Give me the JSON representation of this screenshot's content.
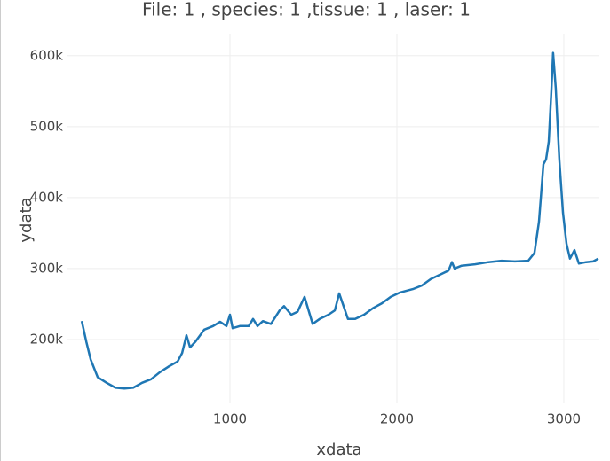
{
  "chart_data": {
    "type": "line",
    "title": "File: 1 , species: 1 ,tissue: 1 , laser: 1",
    "x_label": "xdata",
    "y_label": "ydata",
    "series": [
      {
        "name": "ydata",
        "color": "#1f77b4",
        "x": [
          112,
          139,
          165,
          207,
          261,
          314,
          367,
          420,
          473,
          527,
          580,
          633,
          686,
          713,
          739,
          761,
          793,
          846,
          899,
          941,
          979,
          1000,
          1016,
          1059,
          1112,
          1138,
          1165,
          1197,
          1245,
          1298,
          1324,
          1367,
          1404,
          1447,
          1495,
          1537,
          1590,
          1628,
          1654,
          1707,
          1750,
          1803,
          1856,
          1910,
          1963,
          2016,
          2096,
          2149,
          2202,
          2255,
          2309,
          2330,
          2346,
          2388,
          2468,
          2548,
          2628,
          2707,
          2787,
          2824,
          2851,
          2878,
          2894,
          2910,
          2926,
          2936,
          2952,
          2973,
          2995,
          3016,
          3037,
          3064,
          3090,
          3133,
          3176,
          3207
        ],
        "values": [
          226000,
          197000,
          172000,
          147000,
          139000,
          132000,
          131000,
          132000,
          139000,
          144000,
          154000,
          162000,
          169000,
          181000,
          206000,
          189000,
          197000,
          214000,
          219000,
          225000,
          219000,
          235000,
          216000,
          219000,
          219000,
          229000,
          219000,
          226000,
          222000,
          241000,
          247000,
          235000,
          239000,
          260000,
          222000,
          229000,
          235000,
          241000,
          265000,
          229000,
          229000,
          235000,
          244000,
          251000,
          260000,
          266000,
          271000,
          276000,
          285000,
          291000,
          297000,
          309000,
          300000,
          304000,
          306000,
          309000,
          311000,
          310000,
          311000,
          322000,
          366000,
          447000,
          454000,
          479000,
          554000,
          604000,
          554000,
          454000,
          379000,
          335000,
          314000,
          326000,
          307000,
          309000,
          310000,
          314000
        ]
      }
    ],
    "xlim": [
      21,
      3213
    ],
    "xticks": [
      1000,
      2000,
      3000
    ],
    "ylim": [
      110000,
      631000
    ],
    "yticks": [
      {
        "value": 200000,
        "label": "200k"
      },
      {
        "value": 300000,
        "label": "300k"
      },
      {
        "value": 400000,
        "label": "400k"
      },
      {
        "value": 500000,
        "label": "500k"
      },
      {
        "value": 600000,
        "label": "600k"
      }
    ],
    "grid": true
  }
}
